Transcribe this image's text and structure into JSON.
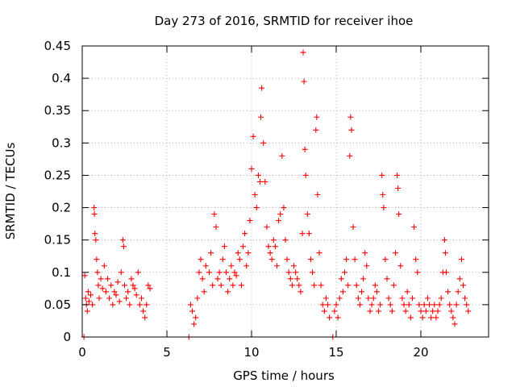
{
  "chart_data": {
    "type": "scatter",
    "title": "Day 273 of 2016, SRMTID for receiver ihoe",
    "xlabel": "GPS time / hours",
    "ylabel": "SRMTID / TECUs",
    "xlim": [
      0,
      24
    ],
    "ylim": [
      0,
      0.45
    ],
    "xticks": [
      0,
      5,
      10,
      15,
      20
    ],
    "xtick_labels": [
      "0",
      "5",
      "10",
      "15",
      "20"
    ],
    "yticks": [
      0,
      0.05,
      0.1,
      0.15,
      0.2,
      0.25,
      0.3,
      0.35,
      0.4,
      0.45
    ],
    "ytick_labels": [
      "0",
      "0.05",
      "0.1",
      "0.15",
      "0.2",
      "0.25",
      "0.3",
      "0.35",
      "0.4",
      "0.45"
    ],
    "grid": true,
    "marker": "+",
    "color": "#ff0000",
    "series": [
      {
        "name": "SRMTID",
        "points": [
          [
            0.1,
            0.0
          ],
          [
            0.15,
            0.095
          ],
          [
            0.2,
            0.06
          ],
          [
            0.25,
            0.05
          ],
          [
            0.3,
            0.04
          ],
          [
            0.35,
            0.07
          ],
          [
            0.4,
            0.055
          ],
          [
            0.5,
            0.065
          ],
          [
            0.6,
            0.05
          ],
          [
            0.7,
            0.2
          ],
          [
            0.72,
            0.19
          ],
          [
            0.75,
            0.16
          ],
          [
            0.8,
            0.15
          ],
          [
            0.85,
            0.12
          ],
          [
            0.9,
            0.1
          ],
          [
            0.95,
            0.08
          ],
          [
            1.0,
            0.06
          ],
          [
            1.1,
            0.09
          ],
          [
            1.2,
            0.075
          ],
          [
            1.3,
            0.11
          ],
          [
            1.4,
            0.07
          ],
          [
            1.5,
            0.09
          ],
          [
            1.6,
            0.06
          ],
          [
            1.7,
            0.08
          ],
          [
            1.8,
            0.05
          ],
          [
            1.9,
            0.07
          ],
          [
            2.0,
            0.065
          ],
          [
            2.1,
            0.085
          ],
          [
            2.2,
            0.055
          ],
          [
            2.3,
            0.1
          ],
          [
            2.4,
            0.15
          ],
          [
            2.45,
            0.14
          ],
          [
            2.5,
            0.08
          ],
          [
            2.6,
            0.06
          ],
          [
            2.7,
            0.07
          ],
          [
            2.8,
            0.05
          ],
          [
            2.9,
            0.09
          ],
          [
            3.0,
            0.08
          ],
          [
            3.1,
            0.075
          ],
          [
            3.2,
            0.065
          ],
          [
            3.3,
            0.1
          ],
          [
            3.4,
            0.05
          ],
          [
            3.5,
            0.06
          ],
          [
            3.6,
            0.04
          ],
          [
            3.7,
            0.03
          ],
          [
            3.8,
            0.05
          ],
          [
            3.9,
            0.08
          ],
          [
            4.0,
            0.075
          ],
          [
            6.3,
            0.0
          ],
          [
            6.4,
            0.05
          ],
          [
            6.5,
            0.04
          ],
          [
            6.6,
            0.02
          ],
          [
            6.7,
            0.03
          ],
          [
            6.8,
            0.06
          ],
          [
            6.9,
            0.1
          ],
          [
            7.0,
            0.12
          ],
          [
            7.1,
            0.09
          ],
          [
            7.2,
            0.07
          ],
          [
            7.3,
            0.11
          ],
          [
            7.5,
            0.1
          ],
          [
            7.6,
            0.13
          ],
          [
            7.7,
            0.08
          ],
          [
            7.8,
            0.19
          ],
          [
            7.9,
            0.17
          ],
          [
            8.0,
            0.09
          ],
          [
            8.1,
            0.1
          ],
          [
            8.2,
            0.08
          ],
          [
            8.3,
            0.12
          ],
          [
            8.4,
            0.14
          ],
          [
            8.5,
            0.1
          ],
          [
            8.6,
            0.07
          ],
          [
            8.7,
            0.09
          ],
          [
            8.8,
            0.11
          ],
          [
            8.9,
            0.08
          ],
          [
            9.0,
            0.1
          ],
          [
            9.1,
            0.095
          ],
          [
            9.2,
            0.13
          ],
          [
            9.3,
            0.12
          ],
          [
            9.4,
            0.08
          ],
          [
            9.5,
            0.14
          ],
          [
            9.6,
            0.16
          ],
          [
            9.7,
            0.11
          ],
          [
            9.8,
            0.13
          ],
          [
            9.9,
            0.18
          ],
          [
            10.0,
            0.26
          ],
          [
            10.1,
            0.31
          ],
          [
            10.2,
            0.22
          ],
          [
            10.3,
            0.2
          ],
          [
            10.4,
            0.25
          ],
          [
            10.5,
            0.24
          ],
          [
            10.55,
            0.34
          ],
          [
            10.6,
            0.385
          ],
          [
            10.7,
            0.3
          ],
          [
            10.8,
            0.24
          ],
          [
            10.9,
            0.17
          ],
          [
            11.0,
            0.14
          ],
          [
            11.1,
            0.13
          ],
          [
            11.2,
            0.12
          ],
          [
            11.3,
            0.15
          ],
          [
            11.4,
            0.14
          ],
          [
            11.5,
            0.11
          ],
          [
            11.6,
            0.18
          ],
          [
            11.7,
            0.19
          ],
          [
            11.8,
            0.28
          ],
          [
            11.9,
            0.2
          ],
          [
            12.0,
            0.15
          ],
          [
            12.1,
            0.12
          ],
          [
            12.2,
            0.1
          ],
          [
            12.3,
            0.09
          ],
          [
            12.4,
            0.08
          ],
          [
            12.5,
            0.11
          ],
          [
            12.6,
            0.1
          ],
          [
            12.7,
            0.09
          ],
          [
            12.8,
            0.08
          ],
          [
            12.9,
            0.07
          ],
          [
            13.0,
            0.16
          ],
          [
            13.05,
            0.44
          ],
          [
            13.1,
            0.395
          ],
          [
            13.15,
            0.29
          ],
          [
            13.2,
            0.25
          ],
          [
            13.3,
            0.19
          ],
          [
            13.4,
            0.16
          ],
          [
            13.5,
            0.12
          ],
          [
            13.6,
            0.1
          ],
          [
            13.7,
            0.08
          ],
          [
            13.8,
            0.32
          ],
          [
            13.85,
            0.34
          ],
          [
            13.9,
            0.22
          ],
          [
            14.0,
            0.13
          ],
          [
            14.1,
            0.08
          ],
          [
            14.2,
            0.05
          ],
          [
            14.3,
            0.04
          ],
          [
            14.4,
            0.06
          ],
          [
            14.5,
            0.05
          ],
          [
            14.6,
            0.03
          ],
          [
            14.8,
            0.0
          ],
          [
            14.9,
            0.04
          ],
          [
            15.0,
            0.05
          ],
          [
            15.1,
            0.03
          ],
          [
            15.2,
            0.06
          ],
          [
            15.3,
            0.09
          ],
          [
            15.4,
            0.07
          ],
          [
            15.5,
            0.1
          ],
          [
            15.6,
            0.12
          ],
          [
            15.7,
            0.08
          ],
          [
            15.8,
            0.28
          ],
          [
            15.85,
            0.34
          ],
          [
            15.9,
            0.32
          ],
          [
            16.0,
            0.17
          ],
          [
            16.1,
            0.12
          ],
          [
            16.2,
            0.08
          ],
          [
            16.3,
            0.06
          ],
          [
            16.4,
            0.05
          ],
          [
            16.5,
            0.07
          ],
          [
            16.6,
            0.09
          ],
          [
            16.7,
            0.13
          ],
          [
            16.8,
            0.11
          ],
          [
            16.9,
            0.06
          ],
          [
            17.0,
            0.04
          ],
          [
            17.1,
            0.05
          ],
          [
            17.2,
            0.06
          ],
          [
            17.3,
            0.08
          ],
          [
            17.4,
            0.07
          ],
          [
            17.5,
            0.04
          ],
          [
            17.6,
            0.05
          ],
          [
            17.7,
            0.25
          ],
          [
            17.75,
            0.22
          ],
          [
            17.8,
            0.2
          ],
          [
            17.9,
            0.12
          ],
          [
            18.0,
            0.09
          ],
          [
            18.1,
            0.06
          ],
          [
            18.2,
            0.05
          ],
          [
            18.3,
            0.04
          ],
          [
            18.4,
            0.08
          ],
          [
            18.5,
            0.13
          ],
          [
            18.6,
            0.25
          ],
          [
            18.65,
            0.23
          ],
          [
            18.7,
            0.19
          ],
          [
            18.8,
            0.11
          ],
          [
            18.9,
            0.06
          ],
          [
            19.0,
            0.05
          ],
          [
            19.1,
            0.04
          ],
          [
            19.2,
            0.07
          ],
          [
            19.3,
            0.05
          ],
          [
            19.4,
            0.03
          ],
          [
            19.5,
            0.06
          ],
          [
            19.6,
            0.17
          ],
          [
            19.7,
            0.12
          ],
          [
            19.8,
            0.1
          ],
          [
            19.9,
            0.05
          ],
          [
            20.0,
            0.04
          ],
          [
            20.1,
            0.03
          ],
          [
            20.2,
            0.05
          ],
          [
            20.3,
            0.04
          ],
          [
            20.4,
            0.06
          ],
          [
            20.5,
            0.05
          ],
          [
            20.6,
            0.03
          ],
          [
            20.7,
            0.04
          ],
          [
            20.8,
            0.05
          ],
          [
            20.9,
            0.03
          ],
          [
            21.0,
            0.04
          ],
          [
            21.1,
            0.05
          ],
          [
            21.2,
            0.06
          ],
          [
            21.3,
            0.1
          ],
          [
            21.4,
            0.15
          ],
          [
            21.45,
            0.13
          ],
          [
            21.5,
            0.1
          ],
          [
            21.6,
            0.07
          ],
          [
            21.7,
            0.05
          ],
          [
            21.8,
            0.04
          ],
          [
            21.9,
            0.03
          ],
          [
            22.0,
            0.02
          ],
          [
            22.1,
            0.05
          ],
          [
            22.2,
            0.07
          ],
          [
            22.3,
            0.09
          ],
          [
            22.4,
            0.12
          ],
          [
            22.5,
            0.08
          ],
          [
            22.6,
            0.06
          ],
          [
            22.7,
            0.05
          ],
          [
            22.8,
            0.04
          ]
        ]
      }
    ]
  }
}
